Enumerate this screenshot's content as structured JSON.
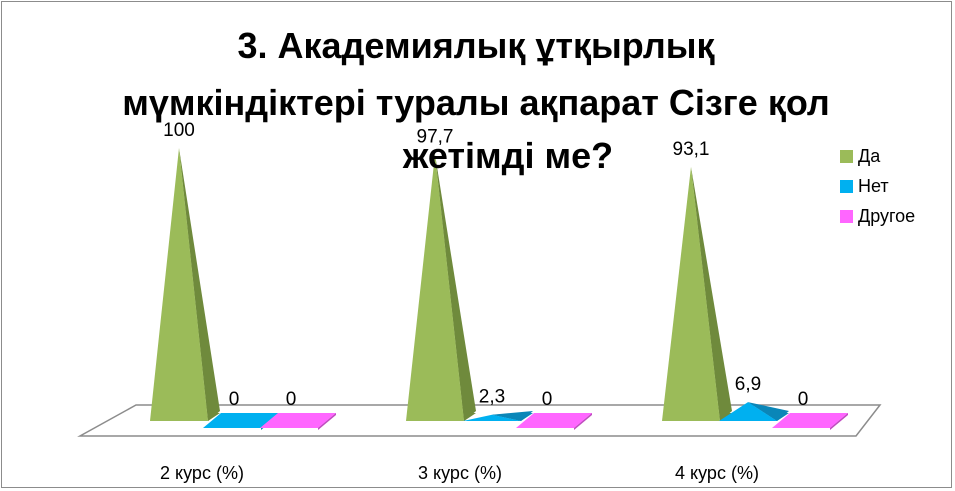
{
  "chart_data": {
    "type": "bar",
    "title_lines": [
      "3. Академиялық ұтқырлық",
      "мүмкіндіктері туралы ақпарат Сізге қол",
      "жетімді ме?"
    ],
    "categories": [
      "2 курс (%)",
      "3 курс (%)",
      "4 курс (%)"
    ],
    "series": [
      {
        "name": "Да",
        "values": [
          100,
          97.7,
          93.1
        ],
        "labels": [
          "100",
          "97,7",
          "93,1"
        ],
        "color": "#9bbb59",
        "shade": "#6f8a3c"
      },
      {
        "name": "Нет",
        "values": [
          0,
          2.3,
          6.9
        ],
        "labels": [
          "0",
          "2,3",
          "6,9"
        ],
        "color": "#00b0f0",
        "shade": "#0a86b8"
      },
      {
        "name": "Другое",
        "values": [
          0,
          0,
          0
        ],
        "labels": [
          "0",
          "0",
          "0"
        ],
        "color": "#ff66ff",
        "shade": "#c04ac0"
      }
    ],
    "ylim": [
      0,
      100
    ],
    "shape": "pyramid-3d",
    "legend_position": "right",
    "grid": false
  }
}
